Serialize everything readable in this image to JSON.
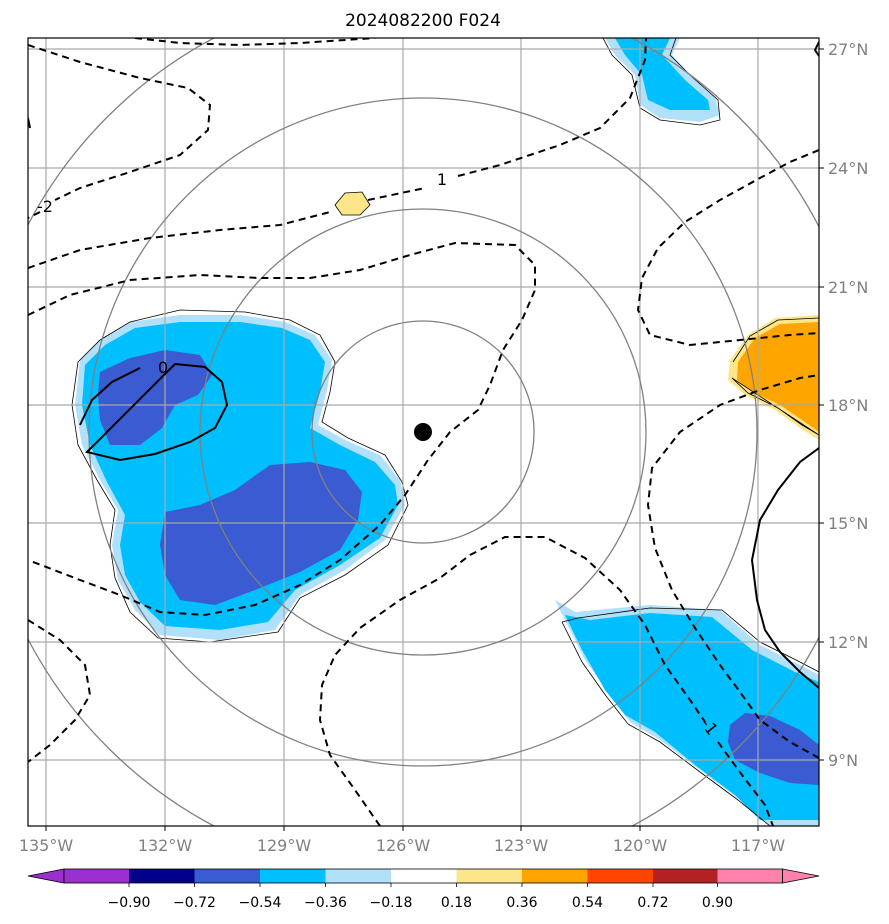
{
  "title": "2024082200 F024",
  "chart_data": {
    "type": "heatmap",
    "title": "2024082200 F024",
    "map": {
      "lon_range": [
        -135.5,
        -115.5
      ],
      "lat_range": [
        7.5,
        27.3
      ],
      "grid": true,
      "center_marker": {
        "lon": -125.5,
        "lat": 17.3
      },
      "range_rings_deg": [
        2.8,
        5.6,
        8.4,
        11.2
      ]
    },
    "x_ticks": [
      {
        "value": -135,
        "label": "135°W"
      },
      {
        "value": -132,
        "label": "132°W"
      },
      {
        "value": -129,
        "label": "129°W"
      },
      {
        "value": -126,
        "label": "126°W"
      },
      {
        "value": -123,
        "label": "123°W"
      },
      {
        "value": -120,
        "label": "120°W"
      },
      {
        "value": -117,
        "label": "117°W"
      }
    ],
    "y_ticks": [
      {
        "value": 27,
        "label": "27°N"
      },
      {
        "value": 24,
        "label": "24°N"
      },
      {
        "value": 21,
        "label": "21°N"
      },
      {
        "value": 18,
        "label": "18°N"
      },
      {
        "value": 15,
        "label": "15°N"
      },
      {
        "value": 12,
        "label": "12°N"
      },
      {
        "value": 9,
        "label": "9°N"
      }
    ],
    "colorbar": {
      "levels": [
        "−0.90",
        "−0.72",
        "−0.54",
        "−0.36",
        "−0.18",
        "0.18",
        "0.36",
        "0.54",
        "0.72",
        "0.90"
      ],
      "colors": [
        "#9b30d0",
        "#00008b",
        "#3a5bd1",
        "#00bfff",
        "#b0e0fa",
        "#ffffff",
        "#fde68a",
        "#ffa500",
        "#ff4500",
        "#b22222",
        "#ff82ab"
      ],
      "extend": "both"
    },
    "contour_labels": [
      {
        "text": "0",
        "lon": -131.0,
        "lat": 19.5
      },
      {
        "text": "-2",
        "lon": -135.0,
        "lat": 22.8
      },
      {
        "text": "1",
        "lon": -125.0,
        "lat": 23.2
      },
      {
        "text": "-1",
        "lon": -117.9,
        "lat": 9.9
      }
    ]
  }
}
